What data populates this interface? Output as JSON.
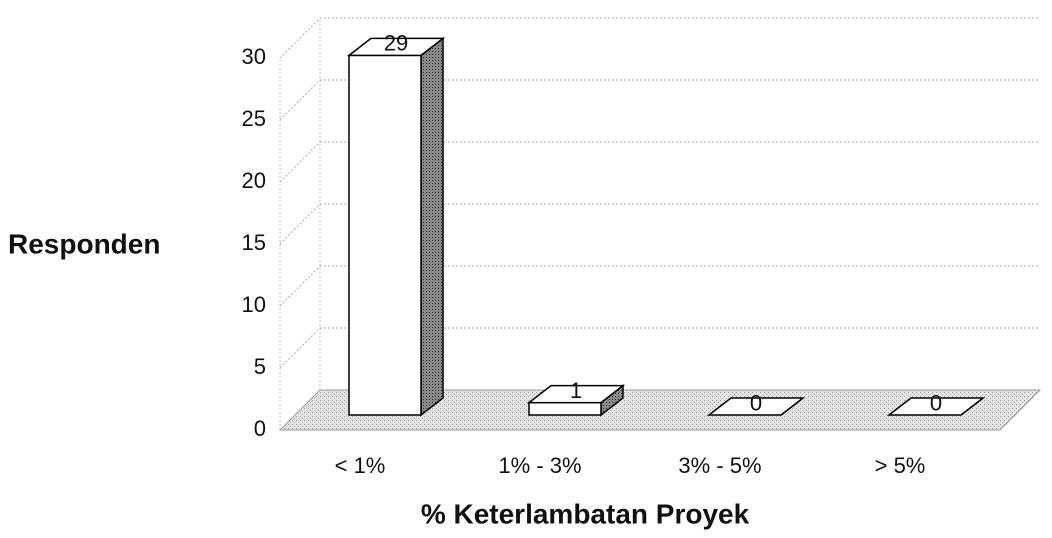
{
  "chart_data": {
    "type": "bar3d",
    "categories": [
      "< 1%",
      "1% - 3%",
      "3% - 5%",
      "> 5%"
    ],
    "values": [
      29,
      1,
      0,
      0
    ],
    "xlabel": "% Keterlambatan Proyek",
    "ylabel": "Responden",
    "ylim": [
      0,
      30
    ],
    "yticks": [
      0,
      5,
      10,
      15,
      20,
      25,
      30
    ],
    "grid": true,
    "color": "#ffffff"
  }
}
